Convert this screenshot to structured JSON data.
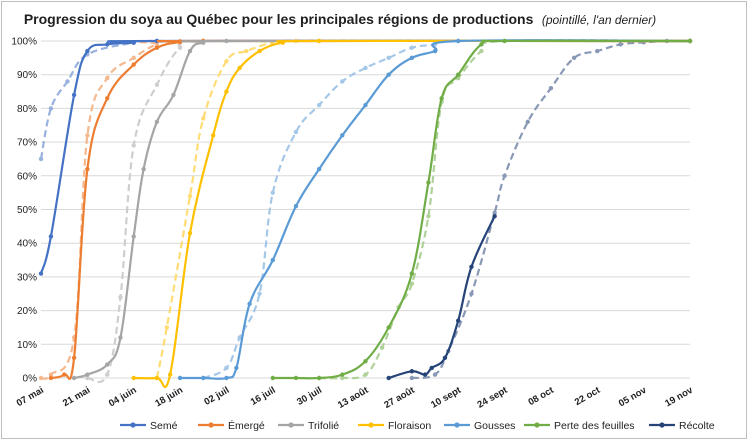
{
  "chart_data": {
    "type": "line",
    "title": "Progression du soya au Québec pour les principales régions de productions",
    "subtitle": "(pointillé, l'an dernier)",
    "x_ticks": [
      "07 mai",
      "21 mai",
      "04 juin",
      "18 juin",
      "02 juil",
      "16 juil",
      "30 juil",
      "13 août",
      "27 août",
      "10 sept",
      "24 sept",
      "08 oct",
      "22 oct",
      "05 nov",
      "19 nov"
    ],
    "y_ticks": [
      "0%",
      "10%",
      "20%",
      "30%",
      "40%",
      "50%",
      "60%",
      "70%",
      "80%",
      "90%",
      "100%"
    ],
    "ylim": [
      0,
      100
    ],
    "x_unit": "days from 07 mai",
    "xlim": [
      0,
      196
    ],
    "grid": true,
    "legend_position": "bottom",
    "series": [
      {
        "name": "Semé",
        "color": "#4472c4",
        "current": [
          [
            0,
            31
          ],
          [
            3,
            42
          ],
          [
            10,
            84
          ],
          [
            14,
            97
          ],
          [
            20,
            99
          ],
          [
            28,
            99.5
          ],
          [
            35,
            100
          ],
          [
            196,
            100
          ]
        ],
        "previous": [
          [
            0,
            65
          ],
          [
            3,
            80
          ],
          [
            8,
            88
          ],
          [
            14,
            96
          ],
          [
            28,
            99.5
          ],
          [
            35,
            100
          ],
          [
            196,
            100
          ]
        ]
      },
      {
        "name": "Émergé",
        "color": "#ed7d31",
        "current": [
          [
            3,
            0
          ],
          [
            7,
            1
          ],
          [
            10,
            6
          ],
          [
            14,
            62
          ],
          [
            20,
            83
          ],
          [
            28,
            93
          ],
          [
            35,
            98
          ],
          [
            42,
            99.7
          ],
          [
            49,
            100
          ],
          [
            196,
            100
          ]
        ],
        "previous": [
          [
            0,
            0
          ],
          [
            3,
            1
          ],
          [
            10,
            12
          ],
          [
            14,
            72
          ],
          [
            20,
            89
          ],
          [
            28,
            95
          ],
          [
            35,
            99
          ],
          [
            42,
            100
          ],
          [
            196,
            100
          ]
        ]
      },
      {
        "name": "Trifolié",
        "color": "#a5a5a5",
        "current": [
          [
            10,
            0
          ],
          [
            14,
            1
          ],
          [
            20,
            4
          ],
          [
            24,
            12
          ],
          [
            28,
            42
          ],
          [
            31,
            62
          ],
          [
            35,
            76
          ],
          [
            40,
            84
          ],
          [
            45,
            97
          ],
          [
            49,
            99.5
          ],
          [
            56,
            100
          ],
          [
            196,
            100
          ]
        ],
        "previous": [
          [
            14,
            0
          ],
          [
            20,
            1
          ],
          [
            24,
            24
          ],
          [
            28,
            69
          ],
          [
            35,
            87
          ],
          [
            42,
            98
          ],
          [
            49,
            100
          ],
          [
            196,
            100
          ]
        ]
      },
      {
        "name": "Floraison",
        "color": "#ffc000",
        "current": [
          [
            28,
            0
          ],
          [
            35,
            0
          ],
          [
            39,
            1
          ],
          [
            45,
            43
          ],
          [
            52,
            72
          ],
          [
            56,
            85
          ],
          [
            60,
            92
          ],
          [
            66,
            97
          ],
          [
            73,
            99.5
          ],
          [
            84,
            100
          ],
          [
            196,
            100
          ]
        ],
        "previous": [
          [
            35,
            0
          ],
          [
            38,
            15
          ],
          [
            45,
            54
          ],
          [
            49,
            77
          ],
          [
            56,
            94
          ],
          [
            62,
            97
          ],
          [
            70,
            99.5
          ],
          [
            77,
            100
          ],
          [
            196,
            100
          ]
        ]
      },
      {
        "name": "Gousses",
        "color": "#5b9bd5",
        "current": [
          [
            42,
            0
          ],
          [
            49,
            0
          ],
          [
            56,
            0
          ],
          [
            59,
            3
          ],
          [
            63,
            22
          ],
          [
            70,
            35
          ],
          [
            77,
            51
          ],
          [
            84,
            62
          ],
          [
            91,
            72
          ],
          [
            98,
            81
          ],
          [
            105,
            90
          ],
          [
            112,
            95
          ],
          [
            119,
            97
          ],
          [
            126,
            100
          ],
          [
            196,
            100
          ]
        ],
        "previous": [
          [
            49,
            0
          ],
          [
            56,
            3
          ],
          [
            60,
            12
          ],
          [
            66,
            25
          ],
          [
            70,
            55
          ],
          [
            77,
            73
          ],
          [
            84,
            81
          ],
          [
            91,
            88
          ],
          [
            98,
            92
          ],
          [
            105,
            95
          ],
          [
            112,
            98
          ],
          [
            119,
            99
          ],
          [
            126,
            100
          ],
          [
            196,
            100
          ]
        ]
      },
      {
        "name": "Perte des feuilles",
        "color": "#70ad47",
        "current": [
          [
            70,
            0
          ],
          [
            77,
            0
          ],
          [
            84,
            0
          ],
          [
            91,
            1
          ],
          [
            98,
            5
          ],
          [
            105,
            15
          ],
          [
            112,
            31
          ],
          [
            117,
            58
          ],
          [
            121,
            83
          ],
          [
            126,
            90
          ],
          [
            133,
            99
          ],
          [
            140,
            100
          ],
          [
            196,
            100
          ]
        ],
        "previous": [
          [
            84,
            0
          ],
          [
            91,
            0
          ],
          [
            98,
            1
          ],
          [
            103,
            9
          ],
          [
            108,
            21
          ],
          [
            112,
            28
          ],
          [
            117,
            48
          ],
          [
            121,
            82
          ],
          [
            126,
            89
          ],
          [
            133,
            97
          ],
          [
            140,
            100
          ],
          [
            196,
            100
          ]
        ]
      },
      {
        "name": "Récolte",
        "color": "#264478",
        "current": [
          [
            105,
            0
          ],
          [
            112,
            2
          ],
          [
            116,
            1
          ],
          [
            118,
            3
          ],
          [
            122,
            6
          ],
          [
            126,
            17
          ],
          [
            130,
            33
          ],
          [
            137,
            48
          ]
        ],
        "previous": [
          [
            112,
            0
          ],
          [
            119,
            1
          ],
          [
            123,
            8
          ],
          [
            130,
            25
          ],
          [
            137,
            49
          ],
          [
            140,
            60
          ],
          [
            147,
            76
          ],
          [
            154,
            86
          ],
          [
            161,
            95
          ],
          [
            168,
            97
          ],
          [
            175,
            99
          ],
          [
            182,
            99.6
          ],
          [
            189,
            100
          ]
        ]
      }
    ]
  }
}
